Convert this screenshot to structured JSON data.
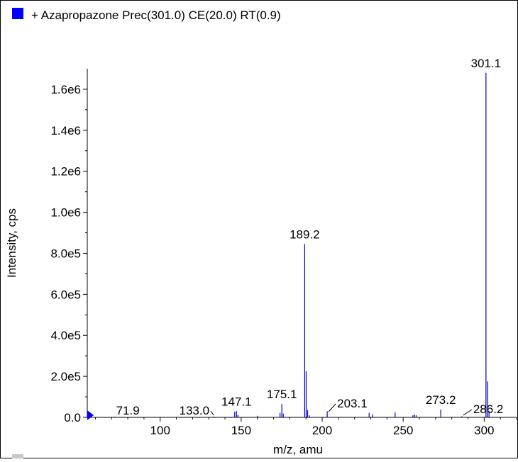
{
  "chart_data": {
    "type": "bar",
    "title": "+ Azapropazone Prec(301.0) CE(20.0) RT(0.9)",
    "xlabel": "m/z, amu",
    "ylabel": "Intensity, cps",
    "xlim": [
      55,
      320
    ],
    "ylim": [
      0,
      1700000
    ],
    "x_ticks": [
      100,
      150,
      200,
      250,
      300
    ],
    "x_tick_labels": [
      "100",
      "150",
      "200",
      "250",
      "300"
    ],
    "y_ticks": [
      0,
      200000,
      400000,
      600000,
      800000,
      1000000,
      1200000,
      1400000,
      1600000
    ],
    "y_tick_labels": [
      "0.0",
      "2.0e5",
      "4.0e5",
      "6.0e5",
      "8.0e5",
      "1.0e6",
      "1.2e6",
      "1.4e6",
      "1.6e6"
    ],
    "series_color": "#0000cc",
    "legend_color": "#0000ff",
    "peaks": [
      {
        "x": 71.9,
        "y": 3000
      },
      {
        "x": 133.0,
        "y": 4000
      },
      {
        "x": 146.0,
        "y": 28000
      },
      {
        "x": 147.1,
        "y": 30000
      },
      {
        "x": 148.0,
        "y": 12000
      },
      {
        "x": 160.0,
        "y": 8000
      },
      {
        "x": 174.0,
        "y": 22000
      },
      {
        "x": 175.1,
        "y": 65000
      },
      {
        "x": 176.0,
        "y": 18000
      },
      {
        "x": 189.2,
        "y": 845000
      },
      {
        "x": 190.1,
        "y": 225000
      },
      {
        "x": 191.0,
        "y": 35000
      },
      {
        "x": 192.0,
        "y": 10000
      },
      {
        "x": 203.1,
        "y": 30000
      },
      {
        "x": 229.0,
        "y": 22000
      },
      {
        "x": 231.0,
        "y": 15000
      },
      {
        "x": 245.0,
        "y": 25000
      },
      {
        "x": 256.0,
        "y": 10000
      },
      {
        "x": 257.0,
        "y": 14000
      },
      {
        "x": 258.0,
        "y": 10000
      },
      {
        "x": 273.2,
        "y": 38000
      },
      {
        "x": 286.2,
        "y": 5000
      },
      {
        "x": 301.1,
        "y": 1680000
      },
      {
        "x": 302.1,
        "y": 175000
      },
      {
        "x": 303.0,
        "y": 30000
      }
    ],
    "peak_labels": [
      {
        "text": "71.9",
        "x": 71.9,
        "y": 3000
      },
      {
        "text": "133.0",
        "x": 133.0,
        "y": 4000
      },
      {
        "text": "147.1",
        "x": 147.1,
        "y": 30000
      },
      {
        "text": "175.1",
        "x": 175.1,
        "y": 65000
      },
      {
        "text": "189.2",
        "x": 189.2,
        "y": 845000
      },
      {
        "text": "203.1",
        "x": 203.1,
        "y": 30000
      },
      {
        "text": "273.2",
        "x": 273.2,
        "y": 38000
      },
      {
        "text": "286.2",
        "x": 286.2,
        "y": 5000
      },
      {
        "text": "301.1",
        "x": 301.1,
        "y": 1680000
      }
    ]
  }
}
